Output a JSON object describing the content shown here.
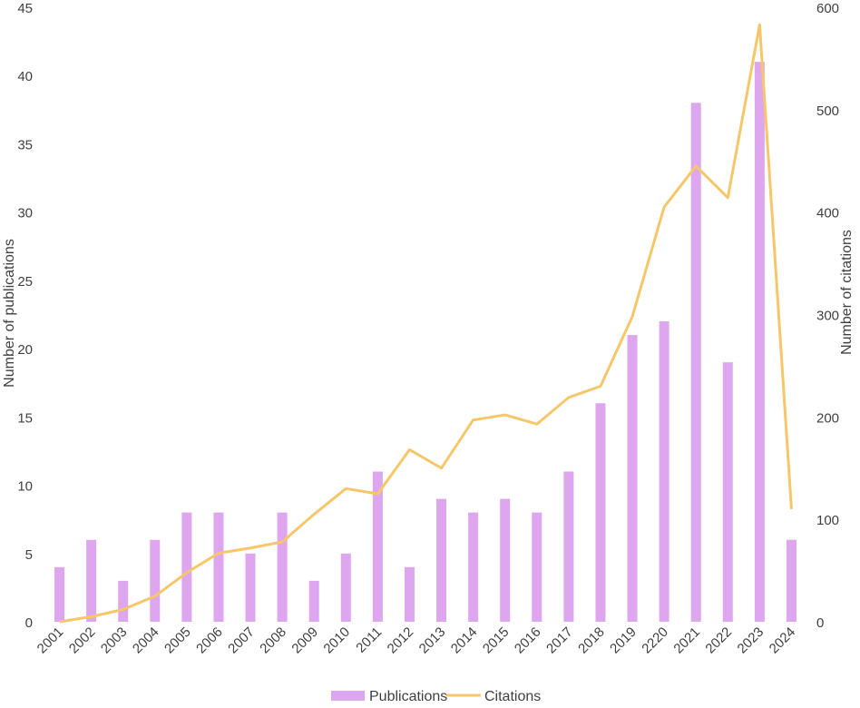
{
  "chart_data": {
    "type": "bar",
    "title": "",
    "categories": [
      "2001",
      "2002",
      "2003",
      "2004",
      "2005",
      "2006",
      "2007",
      "2008",
      "2009",
      "2010",
      "2011",
      "2012",
      "2013",
      "2014",
      "2015",
      "2016",
      "2017",
      "2018",
      "2019",
      "2220",
      "2021",
      "2022",
      "2023",
      "2024"
    ],
    "series": [
      {
        "name": "Publications",
        "type": "bar",
        "axis": "left",
        "color": "#DDA6EE",
        "values": [
          4,
          6,
          3,
          6,
          8,
          8,
          5,
          8,
          3,
          5,
          11,
          4,
          9,
          8,
          9,
          8,
          11,
          16,
          21,
          22,
          38,
          19,
          41,
          6
        ]
      },
      {
        "name": "Citations",
        "type": "line",
        "axis": "right",
        "color": "#F5C76A",
        "values": [
          0,
          5,
          12,
          25,
          48,
          67,
          72,
          78,
          105,
          130,
          125,
          168,
          150,
          197,
          202,
          193,
          219,
          230,
          298,
          405,
          445,
          414,
          583,
          110
        ]
      }
    ],
    "ylabel_left": "Number of publications",
    "ylabel_right": "Number of citations",
    "ylim_left": [
      0,
      45
    ],
    "ylim_right": [
      0,
      600
    ],
    "yticks_left": [
      "0",
      "5",
      "10",
      "15",
      "20",
      "25",
      "30",
      "35",
      "40",
      "45"
    ],
    "yticks_right": [
      "0",
      "100",
      "200",
      "300",
      "400",
      "500",
      "600"
    ],
    "grid": false,
    "legend_position": "bottom-center"
  }
}
